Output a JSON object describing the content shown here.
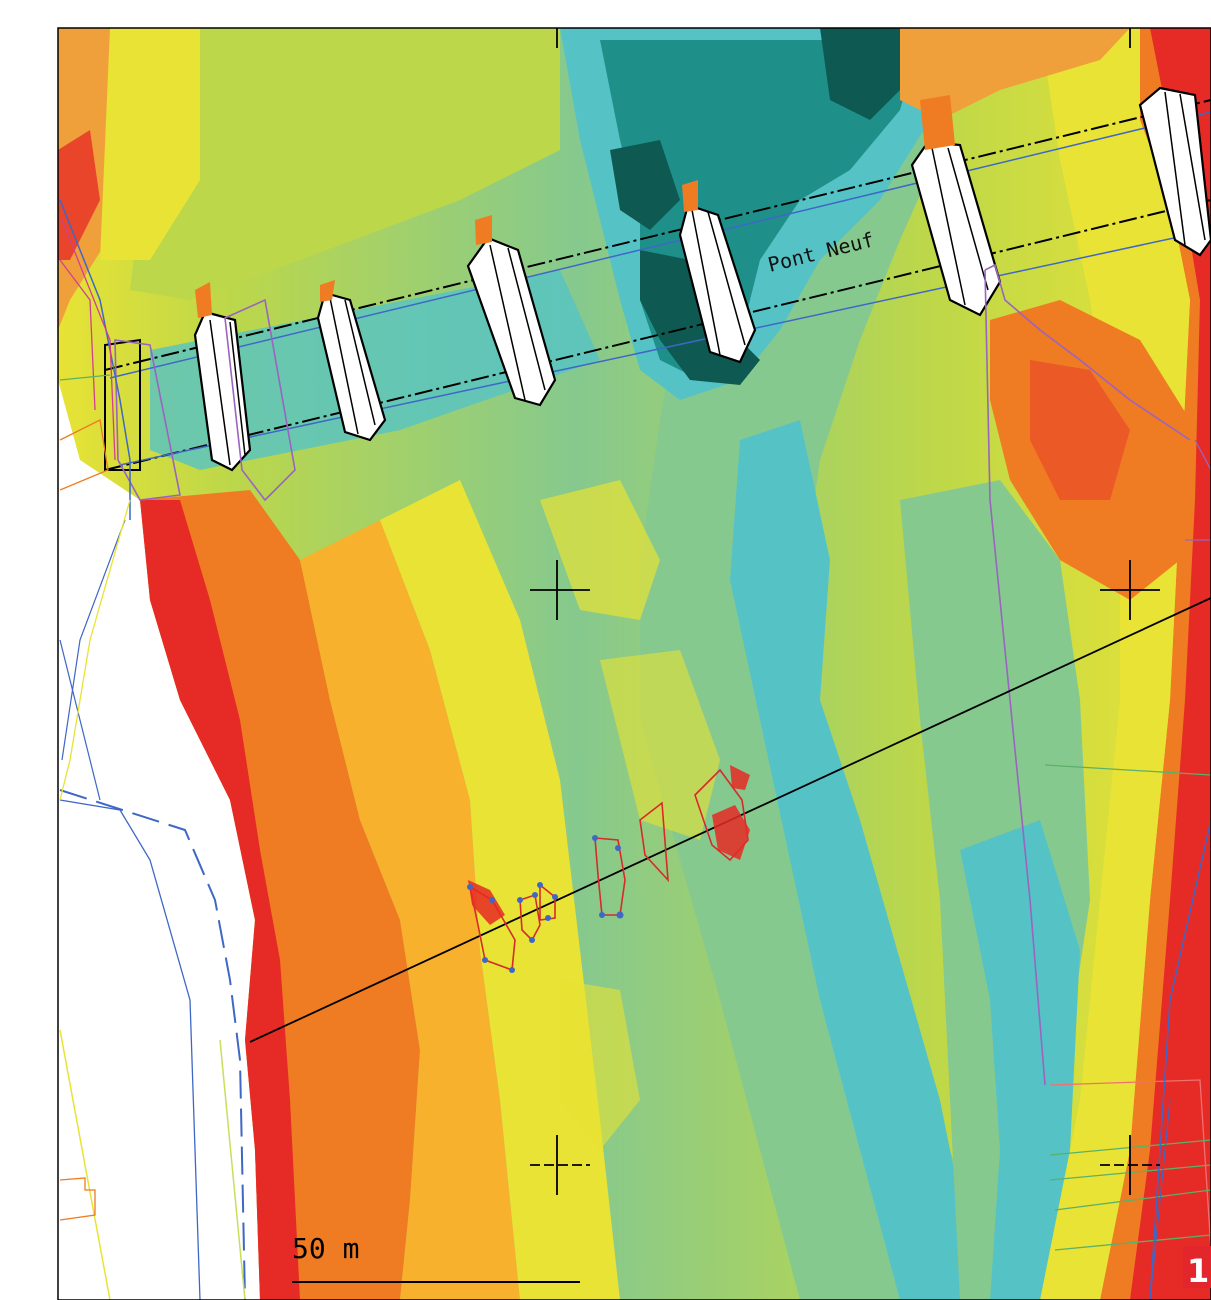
{
  "map": {
    "bridge_label": "Pont Neuf",
    "scale_bar_label": "50 m",
    "figure_number": "1",
    "colors": {
      "depth_deep": "#0e5a52",
      "depth_mid_deep": "#1f8f8a",
      "depth_mid": "#55c3c6",
      "depth_shallow_mid": "#86c98e",
      "depth_shallow": "#bcd74a",
      "depth_very_shallow": "#e8e334",
      "depth_bank_low": "#f7b12d",
      "depth_bank": "#ef7b22",
      "depth_bank_high": "#e62a25",
      "bridge_outline": "#000000",
      "survey_blue": "#3f67c6",
      "survey_purple": "#9a64c0",
      "anomaly_red": "#d72a2a",
      "figure_badge": "#e3262b"
    }
  }
}
